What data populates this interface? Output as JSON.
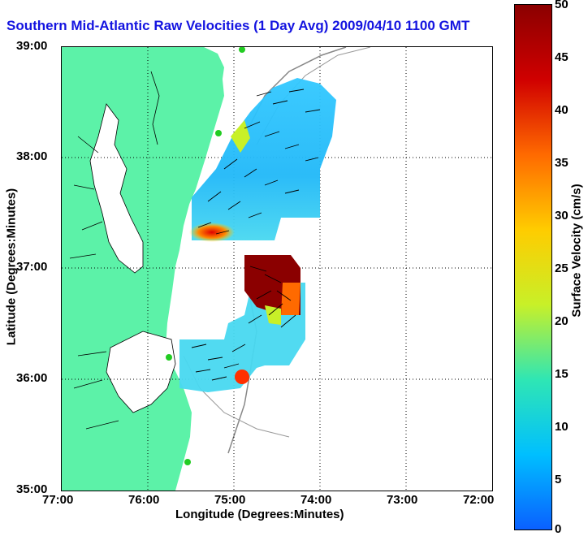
{
  "title": "Southern Mid-Atlantic Raw Velocities (1 Day Avg) 2009/04/10 1100 GMT",
  "xlabel": "Longitude (Degrees:Minutes)",
  "ylabel": "Latitude (Degrees:Minutes)",
  "x_ticks": [
    "77:00",
    "76:00",
    "75:00",
    "74:00",
    "73:00",
    "72:00"
  ],
  "y_ticks": [
    "39:00",
    "38:00",
    "37:00",
    "36:00",
    "35:00"
  ],
  "colorbar": {
    "label": "Surface Velocity (cm/s)",
    "ticks": [
      "50",
      "45",
      "40",
      "35",
      "30",
      "25",
      "20",
      "15",
      "10",
      "5",
      "0"
    ],
    "min": 0,
    "max": 50,
    "colors": [
      "#0a60ff",
      "#00bfff",
      "#2fe6b4",
      "#c8f028",
      "#ffcc00",
      "#ff6a00",
      "#d00000",
      "#8b0000"
    ]
  },
  "colors": {
    "land": "#5cf2a8",
    "ocean": "#ffffff",
    "title": "#1414e0",
    "station": "#22cc22"
  },
  "chart_data": {
    "type": "heatmap",
    "title": "Southern Mid-Atlantic Raw Velocities (1 Day Avg) 2009/04/10 1100 GMT",
    "xlabel": "Longitude (Degrees:Minutes)",
    "ylabel": "Latitude (Degrees:Minutes)",
    "xlim": [
      -77,
      -72
    ],
    "ylim": [
      35,
      39
    ],
    "value_range": [
      0,
      50
    ],
    "units": "cm/s",
    "grid": true
  }
}
